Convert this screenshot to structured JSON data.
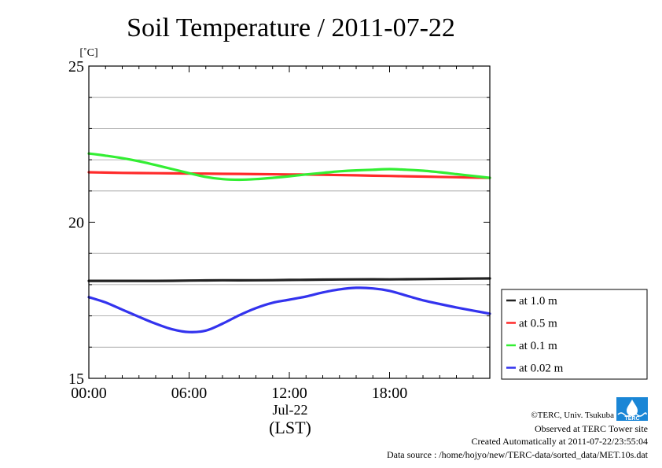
{
  "chart_data": {
    "type": "line",
    "title": "Soil Temperature / 2011-07-22",
    "ylabel": "[˚C]",
    "xlabel": "(LST)",
    "date_label": "Jul-22",
    "ylim": [
      15,
      25
    ],
    "y_major_ticks": [
      15,
      20,
      25
    ],
    "y_minor_ticks": [
      16,
      17,
      18,
      19,
      21,
      22,
      23,
      24
    ],
    "xlim_hours": [
      0,
      24
    ],
    "x_ticks": [
      {
        "label": "00:00",
        "hour": 0
      },
      {
        "label": "06:00",
        "hour": 6
      },
      {
        "label": "12:00",
        "hour": 12
      },
      {
        "label": "18:00",
        "hour": 18
      }
    ],
    "grid": true,
    "legend_position": "bottom-right, outside plot",
    "series": [
      {
        "name": "at 1.0 m",
        "color": "#222222",
        "hours": [
          0,
          2,
          4,
          6,
          8,
          10,
          12,
          14,
          16,
          18,
          20,
          22,
          24
        ],
        "values": [
          18.12,
          18.12,
          18.12,
          18.13,
          18.14,
          18.14,
          18.15,
          18.16,
          18.17,
          18.17,
          18.18,
          18.19,
          18.2
        ]
      },
      {
        "name": "at 0.5 m",
        "color": "#ff2a2a",
        "hours": [
          0,
          2,
          4,
          6,
          8,
          10,
          12,
          14,
          16,
          18,
          20,
          22,
          24
        ],
        "values": [
          21.6,
          21.58,
          21.57,
          21.56,
          21.55,
          21.54,
          21.53,
          21.52,
          21.5,
          21.48,
          21.46,
          21.44,
          21.42
        ]
      },
      {
        "name": "at 0.1 m",
        "color": "#33ee33",
        "hours": [
          0,
          1,
          2,
          3,
          4,
          5,
          6,
          7,
          8,
          9,
          10,
          11,
          12,
          13,
          14,
          15,
          16,
          17,
          18,
          19,
          20,
          21,
          22,
          23,
          24
        ],
        "values": [
          22.2,
          22.13,
          22.05,
          21.95,
          21.83,
          21.7,
          21.57,
          21.45,
          21.38,
          21.36,
          21.38,
          21.42,
          21.47,
          21.53,
          21.58,
          21.63,
          21.66,
          21.68,
          21.7,
          21.68,
          21.65,
          21.6,
          21.54,
          21.48,
          21.42
        ]
      },
      {
        "name": "at 0.02 m",
        "color": "#3333ee",
        "hours": [
          0,
          1,
          2,
          3,
          4,
          5,
          6,
          7,
          8,
          9,
          10,
          11,
          12,
          13,
          14,
          15,
          16,
          17,
          18,
          19,
          20,
          21,
          22,
          23,
          24
        ],
        "values": [
          17.6,
          17.43,
          17.2,
          16.97,
          16.75,
          16.57,
          16.48,
          16.53,
          16.75,
          17.02,
          17.25,
          17.42,
          17.52,
          17.62,
          17.75,
          17.85,
          17.9,
          17.88,
          17.8,
          17.65,
          17.5,
          17.38,
          17.27,
          17.17,
          17.07
        ]
      }
    ]
  },
  "footer": {
    "copyright": "©TERC, Univ. Tsukuba",
    "observed": "Observed at TERC Tower site",
    "created": "Created Automatically at 2011-07-22/23:55:04",
    "source": "Data source : /home/hojyo/new/TERC-data/sorted_data/MET.10s.dat",
    "logo_text": "TERC"
  }
}
